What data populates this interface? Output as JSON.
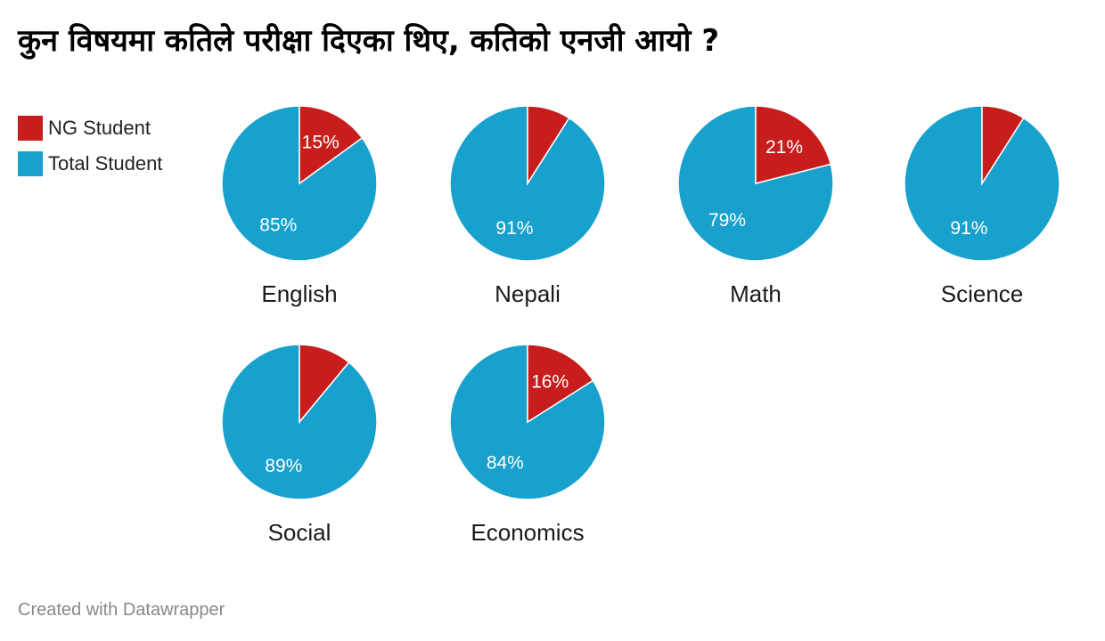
{
  "title": "कुन विषयमा कतिले परीक्षा दिएका थिए,  कतिको एनजी आयो ?",
  "legend": [
    {
      "label": "NG Student",
      "color": "#c71e1d"
    },
    {
      "label": "Total Student",
      "color": "#18a1cd"
    }
  ],
  "footer": "Created with Datawrapper",
  "chart_data": {
    "type": "pie",
    "title": "कुन विषयमा कतिले परीक्षा दिएका थिए,  कतिको एनजी आयो ?",
    "legend_position": "top-left",
    "series_names": [
      "NG Student",
      "Total Student"
    ],
    "colors": [
      "#c71e1d",
      "#18a1cd"
    ],
    "charts": [
      {
        "subject": "English",
        "ng": 15,
        "total": 85,
        "ng_label": "15%",
        "total_label": "85%"
      },
      {
        "subject": "Nepali",
        "ng": 9,
        "total": 91,
        "ng_label": "",
        "total_label": "91%"
      },
      {
        "subject": "Math",
        "ng": 21,
        "total": 79,
        "ng_label": "21%",
        "total_label": "79%"
      },
      {
        "subject": "Science",
        "ng": 9,
        "total": 91,
        "ng_label": "",
        "total_label": "91%"
      },
      {
        "subject": "Social",
        "ng": 11,
        "total": 89,
        "ng_label": "",
        "total_label": "89%"
      },
      {
        "subject": "Economics",
        "ng": 16,
        "total": 84,
        "ng_label": "16%",
        "total_label": "84%"
      }
    ]
  }
}
